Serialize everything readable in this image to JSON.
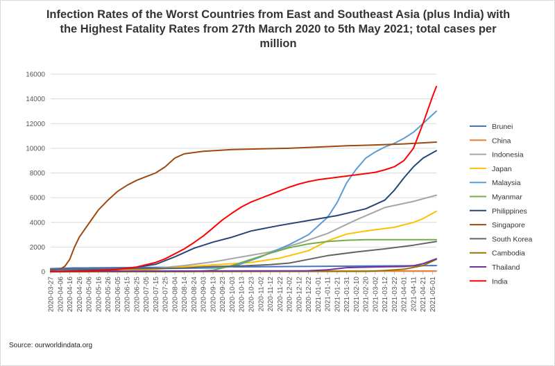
{
  "chart_data": {
    "type": "line",
    "title": "Infection Rates of the Worst Countries from East and Southeast Asia (plus India) with the Highest Fatality Rates from 27th March 2020 to 5th May 2021; total cases per million",
    "source": "Source: ourworldindata.org",
    "xlabel": "",
    "ylabel": "",
    "ylim": [
      0,
      16000
    ],
    "yticks": [
      "0",
      "2000",
      "4000",
      "6000",
      "8000",
      "10000",
      "12000",
      "14000",
      "16000"
    ],
    "xticks": [
      "2020-03-27",
      "2020-04-06",
      "2020-04-16",
      "2020-04-26",
      "2020-05-06",
      "2020-05-16",
      "2020-05-26",
      "2020-06-05",
      "2020-06-15",
      "2020-06-25",
      "2020-07-05",
      "2020-07-15",
      "2020-07-25",
      "2020-08-04",
      "2020-08-14",
      "2020-08-24",
      "2020-09-03",
      "2020-09-13",
      "2020-09-23",
      "2020-10-03",
      "2020-10-13",
      "2020-10-23",
      "2020-11-02",
      "2020-11-12",
      "2020-11-22",
      "2020-12-02",
      "2020-12-12",
      "2020-12-22",
      "2021-01-01",
      "2021-01-11",
      "2021-01-21",
      "2021-01-31",
      "2021-02-10",
      "2021-02-20",
      "2021-03-02",
      "2021-03-12",
      "2021-03-22",
      "2021-04-01",
      "2021-04-11",
      "2021-04-21",
      "2021-05-01"
    ],
    "x_range": [
      "2020-03-27",
      "2021-05-05"
    ],
    "grid": "horizontal",
    "legend": "right",
    "series": [
      {
        "name": "Brunei",
        "color": "#4472c4",
        "points": [
          [
            "2020-03-27",
            250
          ],
          [
            "2020-04-20",
            310
          ],
          [
            "2021-05-05",
            500
          ]
        ]
      },
      {
        "name": "China",
        "color": "#ed7d31",
        "points": [
          [
            "2020-03-27",
            57
          ],
          [
            "2020-05-01",
            58
          ],
          [
            "2021-05-05",
            63
          ]
        ]
      },
      {
        "name": "Indonesia",
        "color": "#a5a5a5",
        "points": [
          [
            "2020-03-27",
            0
          ],
          [
            "2020-06-05",
            120
          ],
          [
            "2020-07-15",
            280
          ],
          [
            "2020-08-14",
            500
          ],
          [
            "2020-09-13",
            800
          ],
          [
            "2020-10-13",
            1200
          ],
          [
            "2020-11-12",
            1600
          ],
          [
            "2020-12-12",
            2300
          ],
          [
            "2021-01-11",
            3100
          ],
          [
            "2021-02-10",
            4200
          ],
          [
            "2021-03-12",
            5200
          ],
          [
            "2021-04-11",
            5700
          ],
          [
            "2021-05-05",
            6200
          ]
        ]
      },
      {
        "name": "Japan",
        "color": "#ffc000",
        "points": [
          [
            "2020-03-27",
            10
          ],
          [
            "2020-04-26",
            110
          ],
          [
            "2020-06-15",
            140
          ],
          [
            "2020-07-15",
            180
          ],
          [
            "2020-08-14",
            400
          ],
          [
            "2020-09-23",
            600
          ],
          [
            "2020-10-23",
            750
          ],
          [
            "2020-11-22",
            1100
          ],
          [
            "2020-12-22",
            1700
          ],
          [
            "2021-01-11",
            2500
          ],
          [
            "2021-01-31",
            3050
          ],
          [
            "2021-02-20",
            3300
          ],
          [
            "2021-03-22",
            3600
          ],
          [
            "2021-04-11",
            4000
          ],
          [
            "2021-04-21",
            4300
          ],
          [
            "2021-05-05",
            4900
          ]
        ]
      },
      {
        "name": "Malaysia",
        "color": "#5b9bd5",
        "points": [
          [
            "2020-03-27",
            60
          ],
          [
            "2020-05-06",
            200
          ],
          [
            "2020-09-13",
            300
          ],
          [
            "2020-10-03",
            400
          ],
          [
            "2020-10-13",
            650
          ],
          [
            "2020-11-02",
            1200
          ],
          [
            "2020-12-02",
            2200
          ],
          [
            "2020-12-22",
            3000
          ],
          [
            "2021-01-11",
            4400
          ],
          [
            "2021-01-21",
            5600
          ],
          [
            "2021-01-31",
            7200
          ],
          [
            "2021-02-10",
            8300
          ],
          [
            "2021-02-20",
            9200
          ],
          [
            "2021-03-02",
            9700
          ],
          [
            "2021-03-12",
            10100
          ],
          [
            "2021-03-22",
            10400
          ],
          [
            "2021-04-01",
            10800
          ],
          [
            "2021-04-11",
            11300
          ],
          [
            "2021-04-21",
            12000
          ],
          [
            "2021-05-05",
            13000
          ]
        ]
      },
      {
        "name": "Myanmar",
        "color": "#70ad47",
        "points": [
          [
            "2020-03-27",
            0
          ],
          [
            "2020-08-24",
            10
          ],
          [
            "2020-09-13",
            120
          ],
          [
            "2020-10-03",
            500
          ],
          [
            "2020-10-23",
            1000
          ],
          [
            "2020-11-12",
            1500
          ],
          [
            "2020-12-02",
            1950
          ],
          [
            "2020-12-22",
            2250
          ],
          [
            "2021-01-11",
            2450
          ],
          [
            "2021-01-31",
            2550
          ],
          [
            "2021-02-20",
            2600
          ],
          [
            "2021-05-05",
            2600
          ]
        ]
      },
      {
        "name": "Philippines",
        "color": "#264478",
        "points": [
          [
            "2020-03-27",
            5
          ],
          [
            "2020-05-06",
            100
          ],
          [
            "2020-06-15",
            250
          ],
          [
            "2020-07-15",
            600
          ],
          [
            "2020-08-04",
            1200
          ],
          [
            "2020-08-24",
            1900
          ],
          [
            "2020-09-13",
            2400
          ],
          [
            "2020-10-03",
            2800
          ],
          [
            "2020-10-23",
            3300
          ],
          [
            "2020-11-22",
            3750
          ],
          [
            "2020-12-22",
            4150
          ],
          [
            "2021-01-21",
            4550
          ],
          [
            "2021-02-20",
            5100
          ],
          [
            "2021-03-12",
            5800
          ],
          [
            "2021-03-22",
            6600
          ],
          [
            "2021-04-01",
            7600
          ],
          [
            "2021-04-11",
            8500
          ],
          [
            "2021-04-21",
            9200
          ],
          [
            "2021-05-05",
            9800
          ]
        ]
      },
      {
        "name": "Singapore",
        "color": "#9e480e",
        "points": [
          [
            "2020-03-27",
            120
          ],
          [
            "2020-04-06",
            200
          ],
          [
            "2020-04-11",
            450
          ],
          [
            "2020-04-16",
            1000
          ],
          [
            "2020-04-21",
            2000
          ],
          [
            "2020-04-26",
            2800
          ],
          [
            "2020-05-06",
            3900
          ],
          [
            "2020-05-16",
            5000
          ],
          [
            "2020-05-26",
            5800
          ],
          [
            "2020-06-05",
            6500
          ],
          [
            "2020-06-15",
            7000
          ],
          [
            "2020-06-25",
            7400
          ],
          [
            "2020-07-05",
            7700
          ],
          [
            "2020-07-15",
            8000
          ],
          [
            "2020-07-25",
            8500
          ],
          [
            "2020-08-04",
            9200
          ],
          [
            "2020-08-14",
            9550
          ],
          [
            "2020-09-03",
            9750
          ],
          [
            "2020-10-03",
            9900
          ],
          [
            "2020-11-02",
            9950
          ],
          [
            "2020-12-02",
            10000
          ],
          [
            "2021-01-01",
            10100
          ],
          [
            "2021-02-01",
            10200
          ],
          [
            "2021-03-02",
            10270
          ],
          [
            "2021-04-01",
            10350
          ],
          [
            "2021-05-05",
            10500
          ]
        ]
      },
      {
        "name": "South Korea",
        "color": "#636363",
        "points": [
          [
            "2020-03-27",
            180
          ],
          [
            "2020-05-06",
            210
          ],
          [
            "2020-07-05",
            250
          ],
          [
            "2020-08-14",
            290
          ],
          [
            "2020-09-13",
            420
          ],
          [
            "2020-10-13",
            470
          ],
          [
            "2020-11-12",
            570
          ],
          [
            "2020-12-02",
            700
          ],
          [
            "2020-12-22",
            1000
          ],
          [
            "2021-01-11",
            1300
          ],
          [
            "2021-02-10",
            1600
          ],
          [
            "2021-03-12",
            1850
          ],
          [
            "2021-04-11",
            2150
          ],
          [
            "2021-05-05",
            2450
          ]
        ]
      },
      {
        "name": "Cambodia",
        "color": "#997300",
        "points": [
          [
            "2020-03-27",
            5
          ],
          [
            "2021-02-20",
            30
          ],
          [
            "2021-03-12",
            100
          ],
          [
            "2021-04-01",
            200
          ],
          [
            "2021-04-21",
            500
          ],
          [
            "2021-05-05",
            1000
          ]
        ]
      },
      {
        "name": "Thailand",
        "color": "#7030a0",
        "points": [
          [
            "2020-03-27",
            20
          ],
          [
            "2020-04-26",
            42
          ],
          [
            "2020-12-22",
            80
          ],
          [
            "2021-01-11",
            150
          ],
          [
            "2021-01-31",
            330
          ],
          [
            "2021-03-12",
            400
          ],
          [
            "2021-04-01",
            420
          ],
          [
            "2021-04-11",
            480
          ],
          [
            "2021-04-21",
            650
          ],
          [
            "2021-05-05",
            1050
          ]
        ]
      },
      {
        "name": "India",
        "color": "#ff0000",
        "points": [
          [
            "2020-03-27",
            1
          ],
          [
            "2020-05-06",
            40
          ],
          [
            "2020-06-05",
            180
          ],
          [
            "2020-06-25",
            380
          ],
          [
            "2020-07-15",
            750
          ],
          [
            "2020-07-25",
            1050
          ],
          [
            "2020-08-04",
            1450
          ],
          [
            "2020-08-14",
            1850
          ],
          [
            "2020-08-24",
            2350
          ],
          [
            "2020-09-03",
            2900
          ],
          [
            "2020-09-13",
            3550
          ],
          [
            "2020-09-23",
            4200
          ],
          [
            "2020-10-03",
            4750
          ],
          [
            "2020-10-13",
            5250
          ],
          [
            "2020-10-23",
            5650
          ],
          [
            "2020-11-02",
            5950
          ],
          [
            "2020-11-12",
            6250
          ],
          [
            "2020-11-22",
            6550
          ],
          [
            "2020-12-02",
            6850
          ],
          [
            "2020-12-12",
            7100
          ],
          [
            "2020-12-22",
            7300
          ],
          [
            "2021-01-01",
            7450
          ],
          [
            "2021-01-21",
            7650
          ],
          [
            "2021-02-10",
            7850
          ],
          [
            "2021-03-02",
            8050
          ],
          [
            "2021-03-12",
            8250
          ],
          [
            "2021-03-22",
            8500
          ],
          [
            "2021-04-01",
            9000
          ],
          [
            "2021-04-11",
            10000
          ],
          [
            "2021-04-21",
            12000
          ],
          [
            "2021-05-01",
            14200
          ],
          [
            "2021-05-05",
            15000
          ]
        ]
      }
    ]
  }
}
